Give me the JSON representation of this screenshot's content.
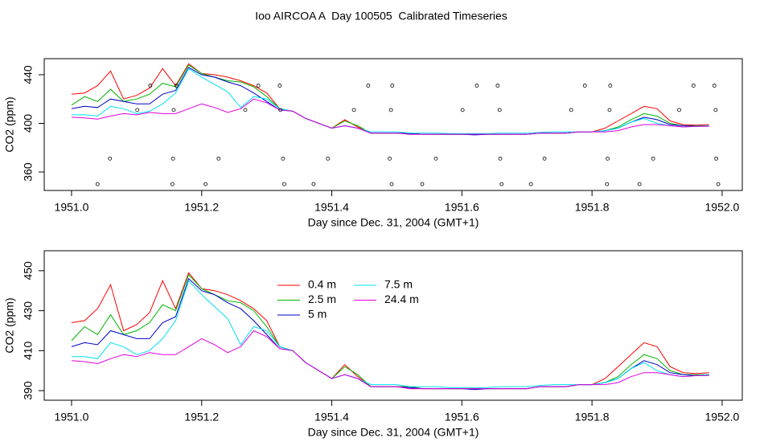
{
  "title": "Ioo AIRCOA A  Day 100505  Calibrated Timeseries",
  "chart_data": [
    {
      "type": "line",
      "xlabel": "Day since Dec. 31, 2004 (GMT+1)",
      "ylabel": "CO2 (ppm)",
      "xlim": [
        1950.958,
        1952.031
      ],
      "ylim": [
        344.8,
        453.2
      ],
      "xticks": [
        {
          "value": 1951,
          "label": "1951.0"
        },
        1951.2,
        1951.4,
        1951.6,
        1951.8,
        {
          "value": 1952,
          "label": "1952.0"
        }
      ],
      "yticks": [
        360,
        400,
        440
      ],
      "x": [
        1951.0,
        1951.02,
        1951.04,
        1951.06,
        1951.08,
        1951.1,
        1951.12,
        1951.14,
        1951.16,
        1951.18,
        1951.2,
        1951.22,
        1951.24,
        1951.26,
        1951.28,
        1951.3,
        1951.32,
        1951.34,
        1951.36,
        1951.38,
        1951.4,
        1951.42,
        1951.44,
        1951.46,
        1951.48,
        1951.5,
        1951.52,
        1951.54,
        1951.56,
        1951.58,
        1951.6,
        1951.62,
        1951.64,
        1951.66,
        1951.68,
        1951.7,
        1951.72,
        1951.74,
        1951.76,
        1951.78,
        1951.8,
        1951.82,
        1951.84,
        1951.86,
        1951.88,
        1951.9,
        1951.92,
        1951.94,
        1951.96,
        1951.98
      ],
      "series": [
        {
          "color": "#ff0000",
          "values": [
            424,
            425,
            431,
            443,
            420,
            423,
            429,
            445,
            431,
            449,
            441,
            440,
            438,
            435,
            431,
            425,
            412,
            410,
            404,
            400,
            396,
            403,
            397,
            392,
            392,
            392,
            391,
            391,
            391,
            391,
            391,
            391,
            391,
            391,
            391,
            391,
            392,
            392,
            392,
            393,
            393,
            396,
            402,
            408,
            414,
            412,
            402,
            399,
            398.5,
            399
          ]
        },
        {
          "color": "#00b400",
          "values": [
            415,
            422,
            418,
            428,
            418,
            420,
            424,
            433,
            430,
            448,
            441,
            438,
            435,
            434,
            430,
            422,
            412,
            410,
            404,
            400,
            396,
            402,
            398,
            392,
            392,
            392,
            392,
            391,
            391,
            391,
            391,
            391,
            391,
            391,
            391,
            391,
            392,
            392,
            392,
            393,
            393,
            394,
            397,
            403,
            408,
            406,
            400,
            398,
            398,
            398
          ]
        },
        {
          "color": "#0000c8",
          "values": [
            412,
            414,
            413,
            420,
            418,
            416,
            416,
            424,
            427,
            446,
            440,
            438,
            434,
            431,
            425,
            418,
            411,
            410,
            404,
            400,
            396,
            398,
            396,
            392,
            392,
            392,
            391.5,
            391,
            391,
            391,
            391,
            390.5,
            391,
            391,
            391,
            391,
            392,
            392,
            392,
            393,
            393,
            394,
            396,
            401,
            405,
            403,
            399,
            398,
            397.5,
            398
          ]
        },
        {
          "color": "#00e0f0",
          "values": [
            407,
            407,
            406,
            414,
            412,
            408,
            410,
            416,
            425,
            445,
            438,
            432,
            426,
            413,
            422,
            420,
            412,
            410,
            404,
            400,
            396,
            398,
            396,
            393,
            393,
            393,
            392,
            392,
            392,
            391.5,
            391.5,
            391.5,
            391.5,
            392,
            392,
            392,
            392.5,
            393,
            393,
            393,
            393,
            394,
            396,
            401,
            404,
            400,
            398,
            397,
            397.5,
            398
          ]
        },
        {
          "color": "#e000e0",
          "values": [
            405,
            404.5,
            403.5,
            406,
            408,
            407,
            409,
            408,
            408,
            412,
            416,
            413,
            409,
            412,
            420,
            417,
            411,
            410,
            404,
            400,
            396,
            398,
            396,
            392,
            392,
            392,
            391,
            391,
            391,
            391,
            391,
            391,
            391,
            391,
            391,
            391,
            392,
            392,
            392,
            393,
            393,
            393,
            394,
            397,
            399,
            399,
            398,
            397,
            397.5,
            397.5
          ]
        }
      ],
      "points": {
        "x": [
          1951.04,
          1951.059,
          1951.101,
          1951.121,
          1951.156,
          1951.155,
          1951.157,
          1951.161,
          1951.206,
          1951.226,
          1951.267,
          1951.287,
          1951.32,
          1951.321,
          1951.325,
          1951.327,
          1951.372,
          1951.394,
          1951.434,
          1951.456,
          1951.491,
          1951.492,
          1951.493,
          1951.489,
          1951.539,
          1951.56,
          1951.601,
          1951.623,
          1951.655,
          1951.658,
          1951.659,
          1951.661,
          1951.706,
          1951.727,
          1951.768,
          1951.789,
          1951.823,
          1951.824,
          1951.828,
          1951.827,
          1951.873,
          1951.894,
          1951.934,
          1951.956,
          1951.988,
          1951.99,
          1951.991,
          1951.994
        ],
        "y": [
          350,
          371,
          411,
          431,
          371,
          350,
          411,
          431,
          350,
          371,
          411,
          431,
          431,
          411,
          371,
          350,
          350,
          371,
          411,
          431,
          411,
          350,
          431,
          371,
          350,
          371,
          411,
          431,
          431,
          411,
          371,
          350,
          350,
          371,
          411,
          431,
          350,
          371,
          431,
          411,
          350,
          371,
          411,
          431,
          431,
          411,
          371,
          350
        ]
      }
    },
    {
      "type": "line",
      "xlabel": "Day since Dec. 31, 2004 (GMT+1)",
      "ylabel": "CO2 (ppm)",
      "legend": "top",
      "xlim": [
        1950.958,
        1952.031
      ],
      "ylim": [
        385.2,
        460
      ],
      "xticks": [
        {
          "value": 1951,
          "label": "1951.0"
        },
        1951.2,
        1951.4,
        1951.6,
        1951.8,
        {
          "value": 1952,
          "label": "1952.0"
        }
      ],
      "yticks": [
        390,
        410,
        430,
        450
      ],
      "x": [
        1951.0,
        1951.02,
        1951.04,
        1951.06,
        1951.08,
        1951.1,
        1951.12,
        1951.14,
        1951.16,
        1951.18,
        1951.2,
        1951.22,
        1951.24,
        1951.26,
        1951.28,
        1951.3,
        1951.32,
        1951.34,
        1951.36,
        1951.38,
        1951.4,
        1951.42,
        1951.44,
        1951.46,
        1951.48,
        1951.5,
        1951.52,
        1951.54,
        1951.56,
        1951.58,
        1951.6,
        1951.62,
        1951.64,
        1951.66,
        1951.68,
        1951.7,
        1951.72,
        1951.74,
        1951.76,
        1951.78,
        1951.8,
        1951.82,
        1951.84,
        1951.86,
        1951.88,
        1951.9,
        1951.92,
        1951.94,
        1951.96,
        1951.98
      ],
      "series": [
        {
          "name": "0.4 m",
          "color": "#ff0000",
          "values": [
            424,
            425,
            431,
            443,
            420,
            423,
            429,
            445,
            431,
            449,
            441,
            440,
            438,
            435,
            431,
            425,
            412,
            410,
            404,
            400,
            396,
            403,
            397,
            392,
            392,
            392,
            391,
            391,
            391,
            391,
            391,
            391,
            391,
            391,
            391,
            391,
            392,
            392,
            392,
            393,
            393,
            396,
            402,
            408,
            414,
            412,
            402,
            399,
            398.5,
            399
          ]
        },
        {
          "name": "2.5 m",
          "color": "#00b400",
          "values": [
            415,
            422,
            418,
            428,
            418,
            420,
            424,
            433,
            430,
            448,
            441,
            438,
            435,
            434,
            430,
            422,
            412,
            410,
            404,
            400,
            396,
            402,
            398,
            392,
            392,
            392,
            392,
            391,
            391,
            391,
            391,
            391,
            391,
            391,
            391,
            391,
            392,
            392,
            392,
            393,
            393,
            394,
            397,
            403,
            408,
            406,
            400,
            398,
            398,
            398
          ]
        },
        {
          "name": "5 m",
          "color": "#0000c8",
          "values": [
            412,
            414,
            413,
            420,
            418,
            416,
            416,
            424,
            427,
            446,
            440,
            438,
            434,
            431,
            425,
            418,
            411,
            410,
            404,
            400,
            396,
            398,
            396,
            392,
            392,
            392,
            391.5,
            391,
            391,
            391,
            391,
            390.5,
            391,
            391,
            391,
            391,
            392,
            392,
            392,
            393,
            393,
            394,
            396,
            401,
            405,
            403,
            399,
            398,
            397.5,
            398
          ]
        },
        {
          "name": "7.5 m",
          "color": "#00e0f0",
          "values": [
            407,
            407,
            406,
            414,
            412,
            408,
            410,
            416,
            425,
            445,
            438,
            432,
            426,
            413,
            422,
            420,
            412,
            410,
            404,
            400,
            396,
            398,
            396,
            393,
            393,
            393,
            392,
            392,
            392,
            391.5,
            391.5,
            391.5,
            391.5,
            392,
            392,
            392,
            392.5,
            393,
            393,
            393,
            393,
            394,
            396,
            401,
            404,
            400,
            398,
            397,
            397.5,
            398
          ]
        },
        {
          "name": "24.4 m",
          "color": "#e000e0",
          "values": [
            405,
            404.5,
            403.5,
            406,
            408,
            407,
            409,
            408,
            408,
            412,
            416,
            413,
            409,
            412,
            420,
            417,
            411,
            410,
            404,
            400,
            396,
            398,
            396,
            392,
            392,
            392,
            391,
            391,
            391,
            391,
            391,
            391,
            391,
            391,
            391,
            391,
            392,
            392,
            392,
            393,
            393,
            393,
            394,
            397,
            399,
            399,
            398,
            397,
            397.5,
            397.5
          ]
        }
      ]
    }
  ]
}
